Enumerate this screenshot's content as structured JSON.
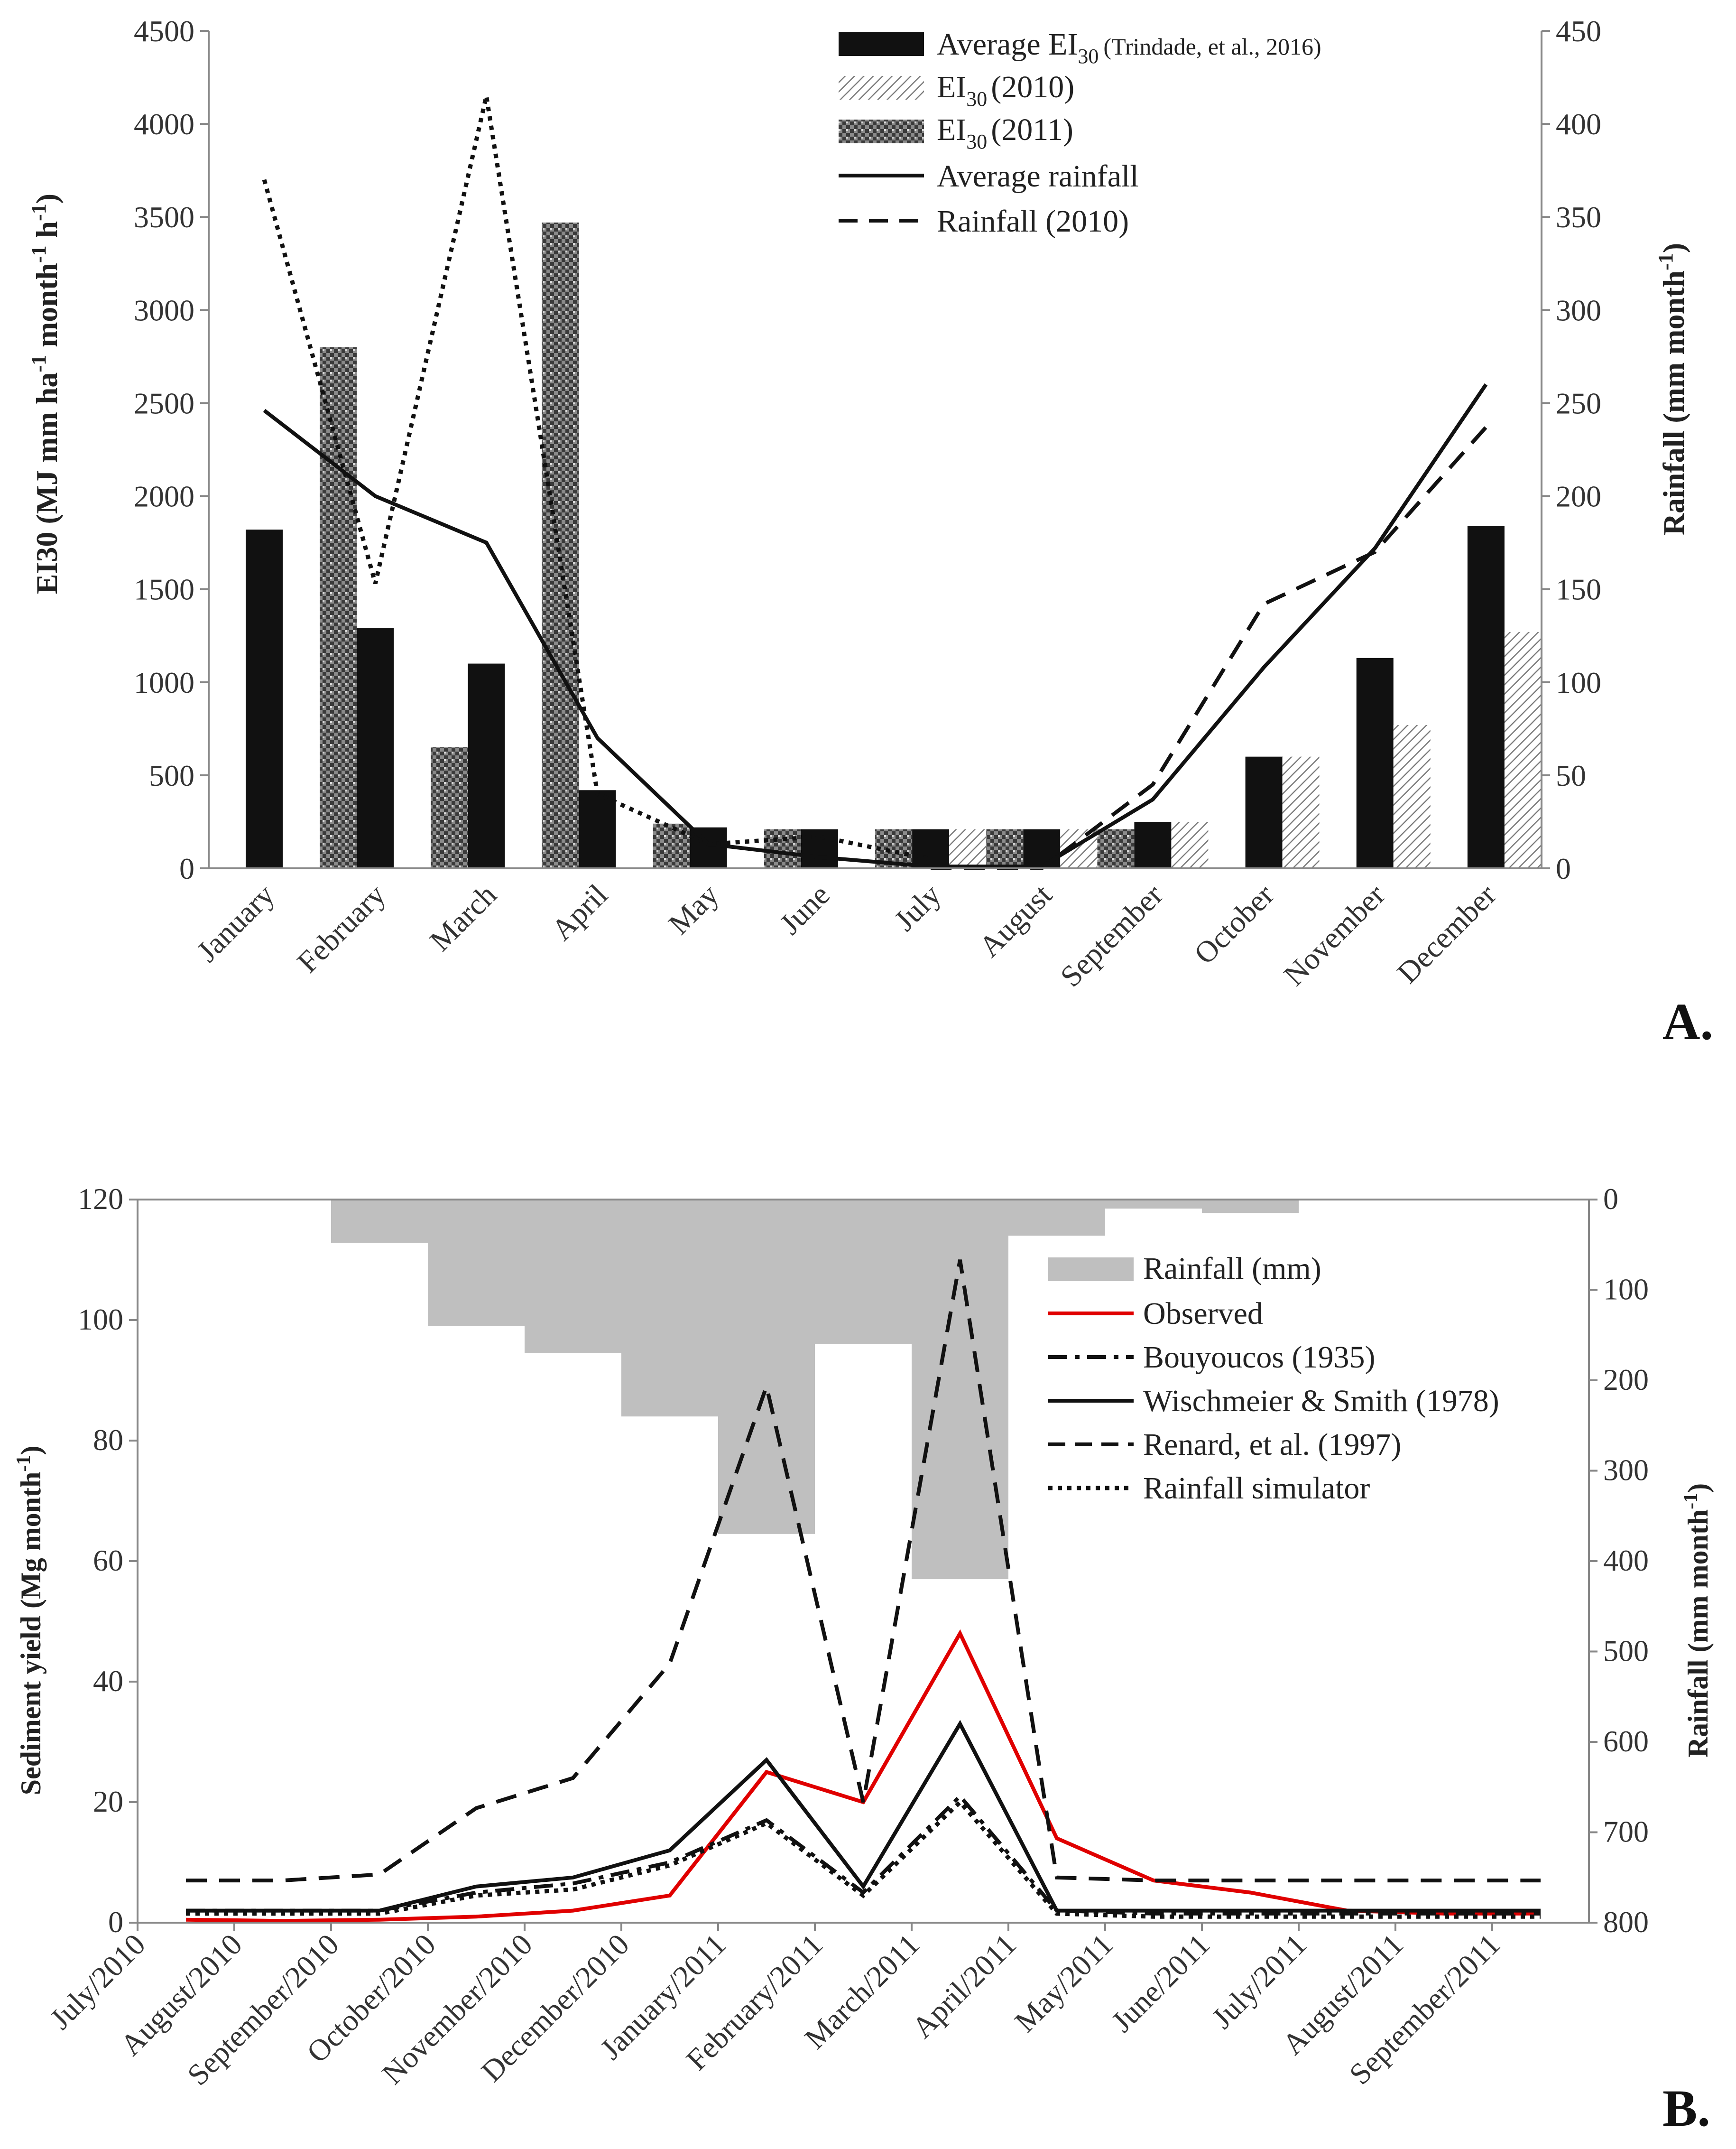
{
  "chart_data": [
    {
      "type": "bar",
      "panel_label": "A.",
      "categories": [
        "January",
        "February",
        "March",
        "April",
        "May",
        "June",
        "July",
        "August",
        "September",
        "October",
        "November",
        "December"
      ],
      "ylabel": "EI30 (MJ mm ha-1 month-1 h-1)",
      "ylabel_parts": {
        "main": "EI30 (MJ mm ha",
        "sup1": "-1",
        "mid": " month",
        "sup2": "-1",
        "mid2": " h",
        "sup3": "-1",
        "end": ")"
      },
      "y2label": "Rainfall (mm month-1)",
      "y2label_parts": {
        "main": "Rainfall (mm month",
        "sup": "-1",
        "end": ")"
      },
      "ylim": [
        0,
        4500
      ],
      "y2lim": [
        0,
        450
      ],
      "yticks": [
        "0",
        "500",
        "1000",
        "1500",
        "2000",
        "2500",
        "3000",
        "3500",
        "4000",
        "4500"
      ],
      "y2ticks": [
        "0",
        "50",
        "100",
        "150",
        "200",
        "250",
        "300",
        "350",
        "400",
        "450"
      ],
      "bar_series": [
        {
          "name": "Average EI30 (Trindade, et al., 2016)",
          "legend_main": "Average EI",
          "legend_sub": "30",
          "legend_ref": "(Trindade,  et al., 2016)",
          "style": "solid",
          "values": [
            1820,
            1290,
            1100,
            420,
            220,
            210,
            210,
            210,
            250,
            600,
            1130,
            1840
          ]
        },
        {
          "name": "EI30 (2010)",
          "legend_main": "EI",
          "legend_sub": "30",
          "legend_ref": "(2010)",
          "style": "hatch",
          "values": [
            0,
            0,
            0,
            0,
            0,
            0,
            210,
            210,
            250,
            600,
            770,
            1270
          ]
        },
        {
          "name": "EI30 (2011)",
          "legend_main": "EI",
          "legend_sub": "30",
          "legend_ref": "(2011)",
          "style": "check",
          "values": [
            0,
            2800,
            650,
            3470,
            240,
            210,
            210,
            210,
            210,
            0,
            0,
            0
          ]
        }
      ],
      "line_series": [
        {
          "name": "Average rainfall",
          "style": "solid",
          "values": [
            246,
            200,
            175,
            70,
            13,
            6,
            1,
            1,
            37,
            108,
            172,
            260
          ]
        },
        {
          "name": "Rainfall (2010)",
          "style": "dashed",
          "values": [
            null,
            null,
            null,
            null,
            null,
            null,
            0,
            0,
            45,
            142,
            170,
            237
          ]
        },
        {
          "name": "Rainfall (2011)",
          "style": "dotted",
          "legend": false,
          "values": [
            370,
            153,
            415,
            40,
            13,
            17,
            5,
            null,
            null,
            null,
            null,
            null
          ]
        }
      ]
    },
    {
      "type": "line",
      "panel_label": "B.",
      "categories": [
        "July/2010",
        "August/2010",
        "September/2010",
        "October/2010",
        "November/2010",
        "December/2010",
        "January/2011",
        "February/2011",
        "March/2011",
        "April/2011",
        "May/2011",
        "June/2011",
        "July/2011",
        "August/2011",
        "September/2011"
      ],
      "ylabel": "Sediment yield (Mg month-1)",
      "ylabel_parts": {
        "main": "Sediment yield (Mg month",
        "sup": "-1",
        "end": ")"
      },
      "y2label": "Rainfall (mm month-1)",
      "y2label_parts": {
        "main": "Rainfall (mm month",
        "sup": "-1",
        "end": ")"
      },
      "ylim": [
        0,
        120
      ],
      "y2lim": [
        0,
        800
      ],
      "y2_inverted": true,
      "yticks": [
        "0",
        "20",
        "40",
        "60",
        "80",
        "100",
        "120"
      ],
      "y2ticks": [
        "0",
        "100",
        "200",
        "300",
        "400",
        "500",
        "600",
        "700",
        "800"
      ],
      "rainfall_bars": {
        "name": "Rainfall (mm)",
        "values": [
          0,
          0,
          48,
          140,
          170,
          240,
          370,
          160,
          420,
          40,
          10,
          15,
          0,
          0,
          0
        ]
      },
      "series": [
        {
          "name": "Observed",
          "style": "red",
          "values": [
            0.5,
            0.3,
            0.5,
            1.0,
            2.0,
            4.5,
            25,
            20,
            48,
            14,
            7,
            5,
            2,
            1.5,
            1.5
          ]
        },
        {
          "name": "Bouyoucos (1935)",
          "style": "dashdot",
          "values": [
            2,
            2,
            2,
            5,
            6.5,
            10,
            17,
            5,
            21,
            2,
            1.5,
            1.5,
            1.5,
            1.5,
            1.5
          ]
        },
        {
          "name": "Wischmeier & Smith (1978)",
          "style": "solid",
          "values": [
            2,
            2,
            2,
            6,
            7.5,
            12,
            27,
            6,
            33,
            2,
            2,
            2,
            2,
            2,
            2
          ]
        },
        {
          "name": "Renard, et al. (1997)",
          "style": "dashed",
          "values": [
            7,
            7,
            8,
            19,
            24,
            43,
            89,
            20,
            110,
            7.5,
            7,
            7,
            7,
            7,
            7
          ]
        },
        {
          "name": "Rainfall simulator",
          "style": "dotted",
          "values": [
            1.5,
            1.5,
            1.5,
            4.5,
            5.5,
            9.5,
            16.5,
            4.5,
            20,
            1.5,
            1,
            1,
            1,
            1,
            1
          ]
        }
      ]
    }
  ]
}
